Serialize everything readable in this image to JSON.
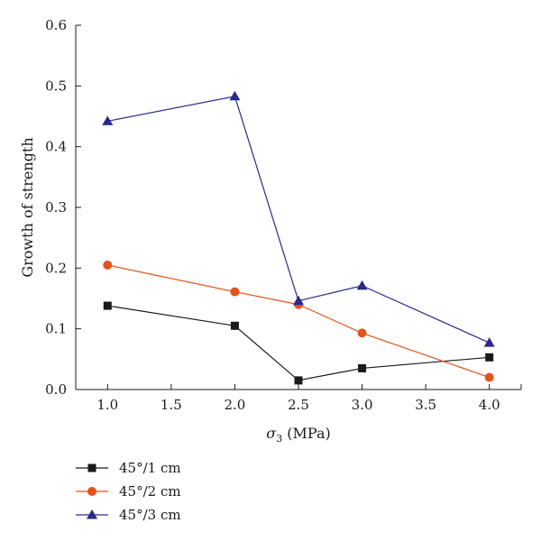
{
  "chart_data": {
    "type": "line",
    "title": "",
    "xlabel": "σ3 (MPa)",
    "ylabel": "Growth of strength",
    "xlim": [
      0.75,
      4.25
    ],
    "ylim": [
      0,
      0.6
    ],
    "x_ticks": [
      1.0,
      1.5,
      2.0,
      2.5,
      3.0,
      3.5,
      4.0
    ],
    "x_tick_labels": [
      "1.0",
      "1.5",
      "2.0",
      "2.5",
      "3.0",
      "3.5",
      "4.0"
    ],
    "y_ticks": [
      0.0,
      0.1,
      0.2,
      0.3,
      0.4,
      0.5,
      0.6
    ],
    "y_tick_labels": [
      "0.0",
      "0.1",
      "0.2",
      "0.3",
      "0.4",
      "0.5",
      "0.6"
    ],
    "grid": false,
    "legend_position": "bottom-left",
    "series": [
      {
        "name": "45°/1 cm",
        "color": "#1a1a1a",
        "marker": "square",
        "x": [
          1.0,
          2.0,
          2.5,
          3.0,
          4.0
        ],
        "y": [
          0.138,
          0.105,
          0.015,
          0.035,
          0.053
        ]
      },
      {
        "name": "45°/2 cm",
        "color": "#e2541c",
        "marker": "circle",
        "x": [
          1.0,
          2.0,
          2.5,
          3.0,
          4.0
        ],
        "y": [
          0.205,
          0.161,
          0.14,
          0.093,
          0.02
        ]
      },
      {
        "name": "45°/3 cm",
        "color": "#2b2a8c",
        "marker": "triangle",
        "x": [
          1.0,
          2.0,
          2.5,
          3.0,
          4.0
        ],
        "y": [
          0.442,
          0.483,
          0.146,
          0.171,
          0.077
        ]
      }
    ]
  }
}
